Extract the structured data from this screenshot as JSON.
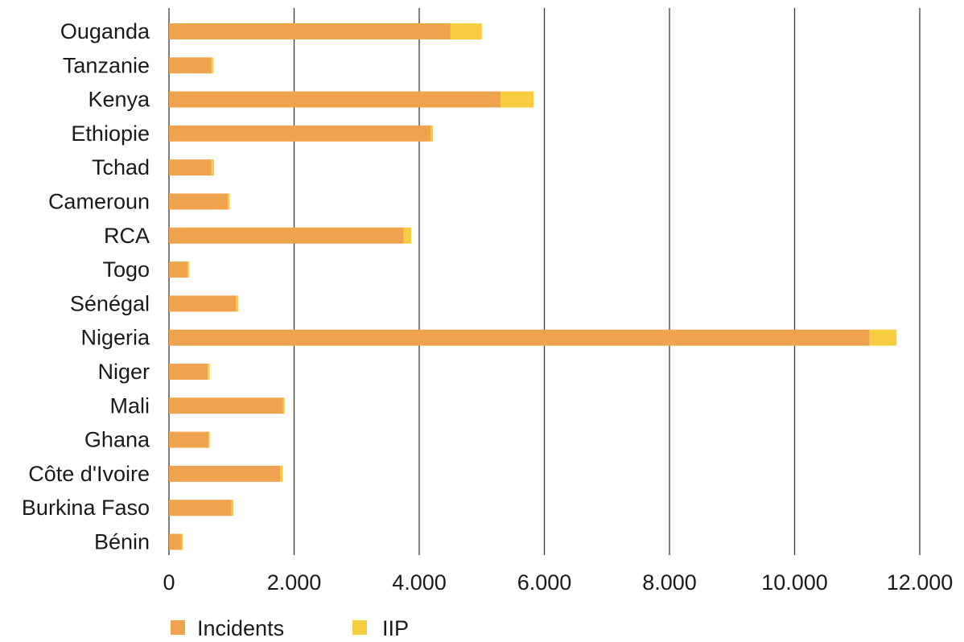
{
  "chart_data": {
    "type": "bar",
    "orientation": "horizontal",
    "stacked": true,
    "categories": [
      "Ouganda",
      "Tanzanie",
      "Kenya",
      "Ethiopie",
      "Tchad",
      "Cameroun",
      "RCA",
      "Togo",
      "Sénégal",
      "Nigeria",
      "Niger",
      "Mali",
      "Ghana",
      "Côte d'Ivoire",
      "Burkina Faso",
      "Bénin"
    ],
    "series": [
      {
        "name": "Incidents",
        "color": "#F0A34E",
        "values": [
          4500,
          680,
          5300,
          4180,
          680,
          940,
          3750,
          300,
          1070,
          11200,
          620,
          1820,
          630,
          1780,
          1000,
          200
        ]
      },
      {
        "name": "IIP",
        "color": "#F7CC3E",
        "values": [
          500,
          30,
          530,
          40,
          40,
          30,
          120,
          20,
          40,
          430,
          30,
          30,
          20,
          40,
          30,
          20
        ]
      }
    ],
    "xlim": [
      0,
      12000
    ],
    "xticks": [
      0,
      2000,
      4000,
      6000,
      8000,
      10000,
      12000
    ],
    "xtick_labels": [
      "0",
      "2.000",
      "4.000",
      "6.000",
      "8.000",
      "10.000",
      "12.000"
    ],
    "grid": "vertical",
    "legend_position": "bottom-left",
    "title": "",
    "xlabel": "",
    "ylabel": ""
  }
}
